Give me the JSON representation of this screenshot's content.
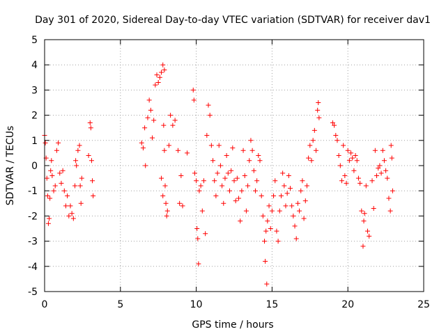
{
  "chart_data": {
    "type": "scatter",
    "title": "Day 301 of 2020, Sidereal Day-to-day VTEC variation (SDTVAR) for receiver dav1",
    "xlabel": "GPS time / hours",
    "ylabel": "SDTVAR / TECUs",
    "xlim": [
      0,
      25
    ],
    "ylim": [
      -5,
      5
    ],
    "xticks": [
      0,
      5,
      10,
      15,
      20,
      25
    ],
    "yticks": [
      -5,
      -4,
      -3,
      -2,
      -1,
      0,
      1,
      2,
      3,
      4,
      5
    ],
    "grid": true,
    "marker": "+",
    "marker_color": "#ff0000",
    "series": [
      {
        "name": "dav1",
        "points": [
          [
            0.0,
            1.2
          ],
          [
            0.05,
            0.9
          ],
          [
            0.1,
            0.3
          ],
          [
            0.15,
            -0.5
          ],
          [
            0.2,
            -1.2
          ],
          [
            0.25,
            -2.3
          ],
          [
            0.3,
            -2.1
          ],
          [
            0.35,
            -1.3
          ],
          [
            0.4,
            -0.2
          ],
          [
            0.45,
            0.2
          ],
          [
            0.5,
            -0.4
          ],
          [
            0.6,
            -1.0
          ],
          [
            0.7,
            -0.8
          ],
          [
            0.8,
            0.6
          ],
          [
            0.9,
            0.9
          ],
          [
            1.0,
            -0.3
          ],
          [
            1.1,
            -0.7
          ],
          [
            1.2,
            -0.2
          ],
          [
            1.3,
            -1.0
          ],
          [
            1.4,
            -1.6
          ],
          [
            1.5,
            -1.2
          ],
          [
            1.6,
            -2.0
          ],
          [
            1.7,
            -1.6
          ],
          [
            1.8,
            -1.9
          ],
          [
            1.9,
            -2.1
          ],
          [
            2.0,
            -0.8
          ],
          [
            2.05,
            0.2
          ],
          [
            2.1,
            0.0
          ],
          [
            2.2,
            0.6
          ],
          [
            2.3,
            0.8
          ],
          [
            2.35,
            -0.8
          ],
          [
            2.4,
            -1.5
          ],
          [
            2.45,
            -0.5
          ],
          [
            2.9,
            0.4
          ],
          [
            3.0,
            1.7
          ],
          [
            3.05,
            1.5
          ],
          [
            3.1,
            0.2
          ],
          [
            3.15,
            -0.6
          ],
          [
            3.2,
            -1.2
          ],
          [
            6.4,
            0.9
          ],
          [
            6.5,
            0.7
          ],
          [
            6.6,
            1.5
          ],
          [
            6.65,
            0.0
          ],
          [
            6.8,
            1.9
          ],
          [
            6.9,
            2.6
          ],
          [
            7.0,
            2.2
          ],
          [
            7.1,
            1.1
          ],
          [
            7.2,
            1.8
          ],
          [
            7.3,
            3.2
          ],
          [
            7.4,
            3.6
          ],
          [
            7.5,
            3.3
          ],
          [
            7.6,
            3.5
          ],
          [
            7.7,
            3.7
          ],
          [
            7.8,
            4.0
          ],
          [
            7.9,
            3.8
          ],
          [
            7.7,
            -0.5
          ],
          [
            7.8,
            -1.2
          ],
          [
            7.85,
            1.6
          ],
          [
            7.9,
            0.6
          ],
          [
            7.95,
            -0.8
          ],
          [
            8.0,
            -1.5
          ],
          [
            8.05,
            -2.0
          ],
          [
            8.1,
            -1.8
          ],
          [
            8.2,
            0.8
          ],
          [
            8.3,
            2.0
          ],
          [
            8.45,
            1.6
          ],
          [
            8.6,
            1.8
          ],
          [
            8.8,
            0.6
          ],
          [
            8.9,
            -1.5
          ],
          [
            9.0,
            -0.4
          ],
          [
            9.1,
            -1.6
          ],
          [
            9.4,
            0.5
          ],
          [
            9.8,
            3.0
          ],
          [
            9.85,
            2.6
          ],
          [
            9.9,
            -0.3
          ],
          [
            10.0,
            -0.6
          ],
          [
            10.05,
            -2.5
          ],
          [
            10.1,
            -2.9
          ],
          [
            10.15,
            -3.9
          ],
          [
            10.2,
            -1.0
          ],
          [
            10.3,
            -0.8
          ],
          [
            10.4,
            -1.8
          ],
          [
            10.5,
            -0.6
          ],
          [
            10.6,
            -2.7
          ],
          [
            10.7,
            1.2
          ],
          [
            10.8,
            2.4
          ],
          [
            10.9,
            2.0
          ],
          [
            11.0,
            0.8
          ],
          [
            11.1,
            0.2
          ],
          [
            11.2,
            -0.6
          ],
          [
            11.3,
            -1.2
          ],
          [
            11.4,
            -0.3
          ],
          [
            11.5,
            0.8
          ],
          [
            11.6,
            0.0
          ],
          [
            11.7,
            -0.8
          ],
          [
            11.8,
            -1.5
          ],
          [
            11.9,
            -0.5
          ],
          [
            12.0,
            0.4
          ],
          [
            12.1,
            -0.3
          ],
          [
            12.2,
            -1.0
          ],
          [
            12.3,
            -0.2
          ],
          [
            12.4,
            0.7
          ],
          [
            12.5,
            -0.6
          ],
          [
            12.6,
            -1.4
          ],
          [
            12.7,
            -0.5
          ],
          [
            12.8,
            -1.3
          ],
          [
            12.9,
            -2.2
          ],
          [
            13.0,
            -1.0
          ],
          [
            13.1,
            0.6
          ],
          [
            13.2,
            -0.4
          ],
          [
            13.3,
            -1.8
          ],
          [
            13.4,
            -0.8
          ],
          [
            13.5,
            0.2
          ],
          [
            13.6,
            1.0
          ],
          [
            13.7,
            0.6
          ],
          [
            13.8,
            -0.2
          ],
          [
            13.9,
            -1.0
          ],
          [
            14.0,
            -0.6
          ],
          [
            14.1,
            0.4
          ],
          [
            14.2,
            0.2
          ],
          [
            14.3,
            -1.2
          ],
          [
            14.4,
            -2.0
          ],
          [
            14.5,
            -3.0
          ],
          [
            14.55,
            -3.8
          ],
          [
            14.6,
            -2.6
          ],
          [
            14.65,
            -4.7
          ],
          [
            14.7,
            -2.2
          ],
          [
            14.8,
            -1.6
          ],
          [
            14.9,
            -2.5
          ],
          [
            15.0,
            -1.8
          ],
          [
            15.1,
            -1.2
          ],
          [
            15.2,
            -0.6
          ],
          [
            15.3,
            -2.6
          ],
          [
            15.4,
            -3.0
          ],
          [
            15.5,
            -1.8
          ],
          [
            15.6,
            -1.2
          ],
          [
            15.7,
            -0.3
          ],
          [
            15.8,
            -0.8
          ],
          [
            15.9,
            -1.6
          ],
          [
            16.0,
            -1.1
          ],
          [
            16.1,
            -0.4
          ],
          [
            16.2,
            -0.9
          ],
          [
            16.3,
            -1.6
          ],
          [
            16.4,
            -2.0
          ],
          [
            16.5,
            -2.4
          ],
          [
            16.6,
            -2.9
          ],
          [
            16.7,
            -1.5
          ],
          [
            16.8,
            -1.8
          ],
          [
            16.9,
            -1.0
          ],
          [
            17.0,
            -0.6
          ],
          [
            17.1,
            -2.1
          ],
          [
            17.2,
            -1.4
          ],
          [
            17.3,
            -0.8
          ],
          [
            17.4,
            0.3
          ],
          [
            17.5,
            0.8
          ],
          [
            17.6,
            0.2
          ],
          [
            17.7,
            1.0
          ],
          [
            17.8,
            1.4
          ],
          [
            17.9,
            0.6
          ],
          [
            18.0,
            2.2
          ],
          [
            18.05,
            2.5
          ],
          [
            18.1,
            1.9
          ],
          [
            19.0,
            1.7
          ],
          [
            19.1,
            1.6
          ],
          [
            19.2,
            1.2
          ],
          [
            19.3,
            1.0
          ],
          [
            19.4,
            0.4
          ],
          [
            19.5,
            0.0
          ],
          [
            19.6,
            -0.6
          ],
          [
            19.7,
            0.8
          ],
          [
            19.8,
            -0.4
          ],
          [
            19.9,
            -0.7
          ],
          [
            20.0,
            0.6
          ],
          [
            20.1,
            0.2
          ],
          [
            20.2,
            0.5
          ],
          [
            20.3,
            0.3
          ],
          [
            20.4,
            -0.2
          ],
          [
            20.5,
            0.4
          ],
          [
            20.6,
            0.2
          ],
          [
            20.7,
            -0.5
          ],
          [
            20.8,
            -0.7
          ],
          [
            20.9,
            -1.8
          ],
          [
            21.0,
            -3.2
          ],
          [
            21.05,
            -2.2
          ],
          [
            21.1,
            -1.9
          ],
          [
            21.2,
            -0.8
          ],
          [
            21.3,
            -2.6
          ],
          [
            21.4,
            -2.8
          ],
          [
            21.6,
            -0.6
          ],
          [
            21.7,
            -1.7
          ],
          [
            21.8,
            0.6
          ],
          [
            21.9,
            -0.4
          ],
          [
            22.0,
            -0.1
          ],
          [
            22.1,
            0.0
          ],
          [
            22.2,
            -0.3
          ],
          [
            22.3,
            0.6
          ],
          [
            22.4,
            0.2
          ],
          [
            22.5,
            -0.2
          ],
          [
            22.6,
            -0.5
          ],
          [
            22.7,
            -1.3
          ],
          [
            22.8,
            -1.8
          ],
          [
            22.85,
            0.8
          ],
          [
            22.9,
            0.3
          ],
          [
            22.95,
            -1.0
          ]
        ]
      }
    ]
  }
}
